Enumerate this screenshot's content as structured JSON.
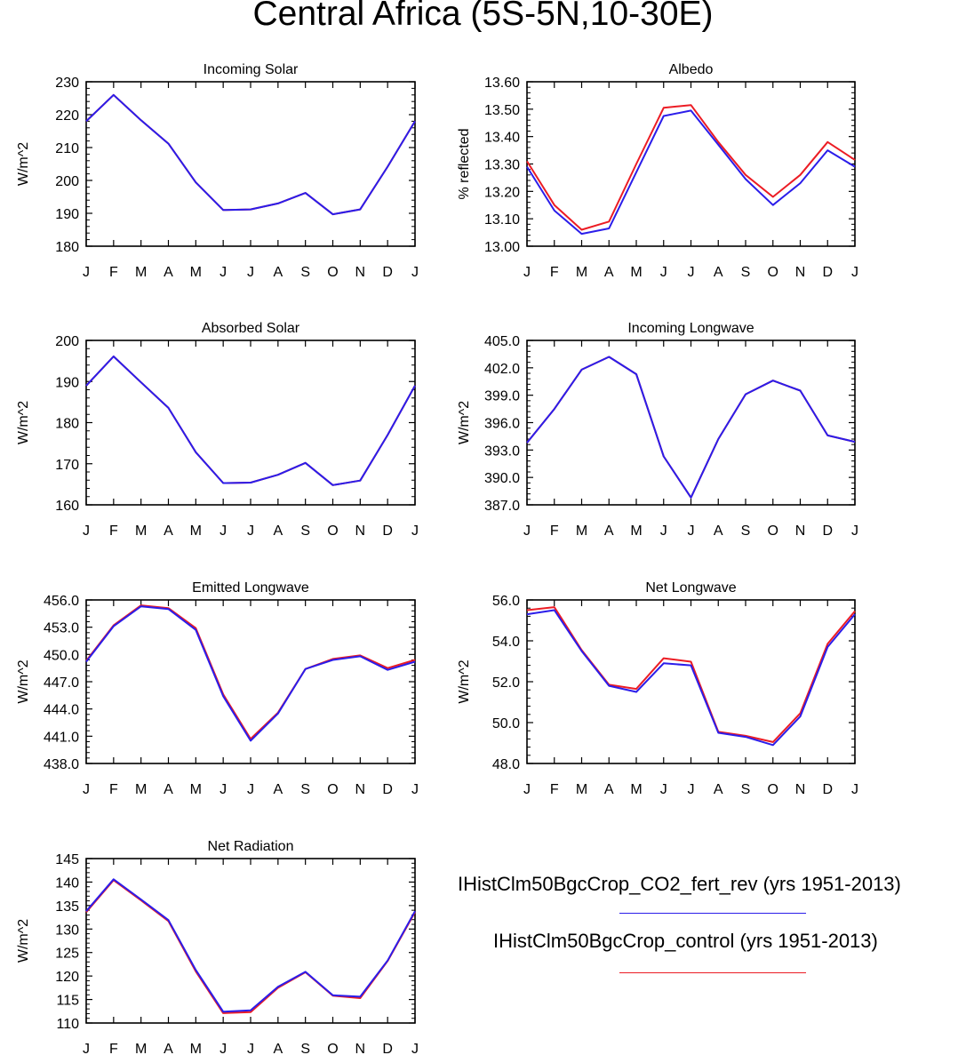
{
  "title": "Central Africa (5S-5N,10-30E)",
  "months": [
    "J",
    "F",
    "M",
    "A",
    "M",
    "J",
    "J",
    "A",
    "S",
    "O",
    "N",
    "D",
    "J"
  ],
  "colors": {
    "exp": "#2b1dea",
    "ctl": "#ec1c24"
  },
  "legend": [
    {
      "label": "IHistClm50BgcCrop_CO2_fert_rev (yrs 1951-2013)",
      "color": "#2b1dea"
    },
    {
      "label": "IHistClm50BgcCrop_control (yrs 1951-2013)",
      "color": "#ec1c24"
    }
  ],
  "chart_data": [
    {
      "type": "line",
      "title": "Incoming Solar",
      "ylabel": "W/m^2",
      "ylim": [
        180,
        230
      ],
      "yticks": [
        180,
        190,
        200,
        210,
        220,
        230
      ],
      "ydecimals": 0,
      "series": [
        {
          "values": [
            218,
            226,
            218.3,
            211.2,
            199.4,
            191,
            191.2,
            193,
            196.2,
            189.7,
            191.2,
            204.2,
            218
          ]
        },
        {
          "values": [
            218,
            226,
            218.3,
            211.2,
            199.4,
            191,
            191.2,
            193,
            196.2,
            189.7,
            191.2,
            204.2,
            218
          ]
        }
      ]
    },
    {
      "type": "line",
      "title": "Albedo",
      "ylabel": "% reflected",
      "ylim": [
        13.0,
        13.6
      ],
      "yticks": [
        13.0,
        13.1,
        13.2,
        13.3,
        13.4,
        13.5,
        13.6
      ],
      "ydecimals": 2,
      "series": [
        {
          "values": [
            13.29,
            13.13,
            13.045,
            13.065,
            13.27,
            13.475,
            13.495,
            13.37,
            13.245,
            13.15,
            13.23,
            13.35,
            13.29
          ]
        },
        {
          "values": [
            13.31,
            13.15,
            13.06,
            13.09,
            13.3,
            13.505,
            13.515,
            13.38,
            13.26,
            13.18,
            13.26,
            13.38,
            13.315
          ]
        }
      ]
    },
    {
      "type": "line",
      "title": "Absorbed Solar",
      "ylabel": "W/m^2",
      "ylim": [
        160,
        200
      ],
      "yticks": [
        160,
        170,
        180,
        190,
        200
      ],
      "ydecimals": 0,
      "series": [
        {
          "values": [
            189,
            196.1,
            189.8,
            183.6,
            172.8,
            165.3,
            165.4,
            167.3,
            170.2,
            164.8,
            165.9,
            177,
            189
          ]
        },
        {
          "values": [
            189,
            196.1,
            189.8,
            183.6,
            172.8,
            165.3,
            165.4,
            167.3,
            170.2,
            164.8,
            165.9,
            177,
            189
          ]
        }
      ]
    },
    {
      "type": "line",
      "title": "Incoming Longwave",
      "ylabel": "W/m^2",
      "ylim": [
        387,
        405
      ],
      "yticks": [
        387,
        390,
        393,
        396,
        399,
        402,
        405
      ],
      "ydecimals": 1,
      "series": [
        {
          "values": [
            393.8,
            397.5,
            401.8,
            403.2,
            401.3,
            392.3,
            387.8,
            394.2,
            399.1,
            400.6,
            399.5,
            394.6,
            393.9
          ]
        },
        {
          "values": [
            393.8,
            397.5,
            401.8,
            403.2,
            401.3,
            392.3,
            387.8,
            394.2,
            399.1,
            400.6,
            399.5,
            394.6,
            393.9
          ]
        }
      ]
    },
    {
      "type": "line",
      "title": "Emitted Longwave",
      "ylabel": "W/m^2",
      "ylim": [
        438,
        456
      ],
      "yticks": [
        438,
        441,
        444,
        447,
        450,
        453,
        456
      ],
      "ydecimals": 1,
      "series": [
        {
          "values": [
            449.2,
            453.1,
            455.3,
            455,
            452.7,
            445.4,
            440.5,
            443.5,
            448.4,
            449.4,
            449.8,
            448.3,
            449.2
          ]
        },
        {
          "values": [
            449.3,
            453.2,
            455.4,
            455.1,
            452.9,
            445.6,
            440.7,
            443.6,
            448.4,
            449.5,
            449.9,
            448.5,
            449.4
          ]
        }
      ]
    },
    {
      "type": "line",
      "title": "Net Longwave",
      "ylabel": "W/m^2",
      "ylim": [
        48,
        56
      ],
      "yticks": [
        48,
        50,
        52,
        54,
        56
      ],
      "ydecimals": 1,
      "series": [
        {
          "values": [
            55.3,
            55.5,
            53.5,
            51.8,
            51.5,
            52.9,
            52.8,
            49.5,
            49.3,
            48.9,
            50.3,
            53.7,
            55.3
          ]
        },
        {
          "values": [
            55.5,
            55.65,
            53.55,
            51.85,
            51.65,
            53.15,
            52.98,
            49.55,
            49.35,
            49.05,
            50.45,
            53.85,
            55.45
          ]
        }
      ]
    },
    {
      "type": "line",
      "title": "Net Radiation",
      "ylabel": "W/m^2",
      "ylim": [
        110,
        145
      ],
      "yticks": [
        110,
        115,
        120,
        125,
        130,
        135,
        140,
        145
      ],
      "ydecimals": 0,
      "series": [
        {
          "values": [
            133.8,
            140.6,
            136.3,
            131.9,
            121.3,
            112.4,
            112.7,
            117.7,
            120.9,
            115.9,
            115.6,
            123.3,
            133.8
          ]
        },
        {
          "values": [
            133.6,
            140.4,
            136.1,
            131.7,
            121.0,
            112.1,
            112.3,
            117.5,
            120.8,
            115.8,
            115.3,
            123.2,
            133.6
          ]
        }
      ]
    }
  ]
}
